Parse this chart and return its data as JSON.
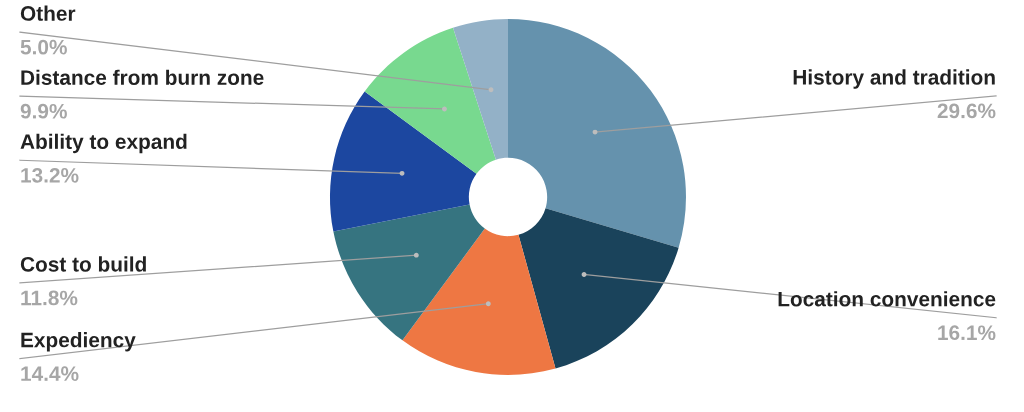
{
  "chart_data": {
    "type": "donut",
    "categories": [
      "History and tradition",
      "Location convenience",
      "Expediency",
      "Cost to build",
      "Ability to expand",
      "Distance from burn zone",
      "Other"
    ],
    "values": [
      29.6,
      16.1,
      14.4,
      11.8,
      13.2,
      9.9,
      5.0
    ],
    "colors": [
      "#6592ad",
      "#1a435b",
      "#ee7743",
      "#367480",
      "#1c47a0",
      "#78d98f",
      "#93b1c7"
    ],
    "value_labels": [
      "29.6%",
      "16.1%",
      "14.4%",
      "11.8%",
      "13.2%",
      "9.9%",
      "5.0%"
    ]
  }
}
